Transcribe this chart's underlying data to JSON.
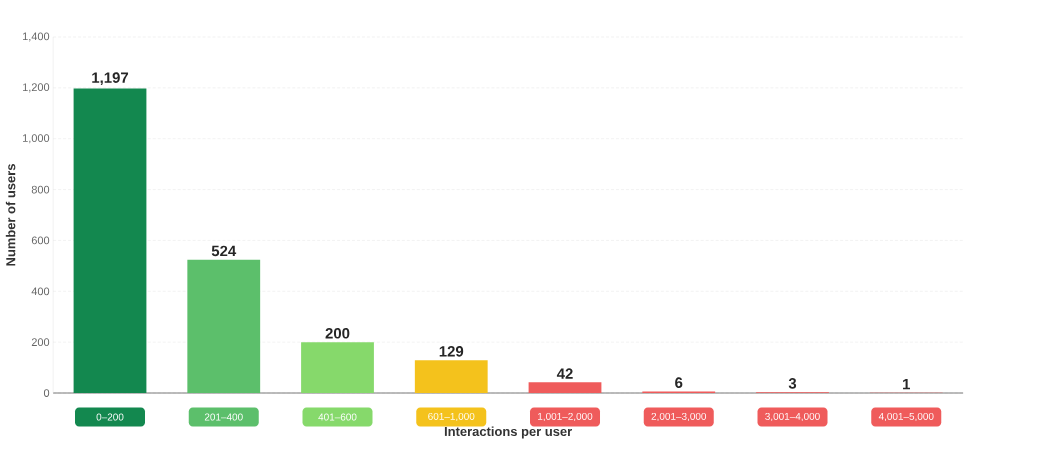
{
  "chart_data": {
    "type": "bar",
    "xlabel": "Interactions per user",
    "ylabel": "Number of users",
    "categories": [
      "0–200",
      "201–400",
      "401–600",
      "601–1,000",
      "1,001–2,000",
      "2,001–3,000",
      "3,001–4,000",
      "4,001–5,000"
    ],
    "values": [
      1197,
      524,
      200,
      129,
      42,
      6,
      3,
      1
    ],
    "value_labels": [
      "1,197",
      "524",
      "200",
      "129",
      "42",
      "6",
      "3",
      "1"
    ],
    "colors": [
      "#13884f",
      "#5cbf6b",
      "#86d96b",
      "#f4c21c",
      "#ef5b5b",
      "#ef5b5b",
      "#ef5b5b",
      "#ef5b5b"
    ],
    "ylim": [
      0,
      1400
    ],
    "yticks": [
      0,
      200,
      400,
      600,
      800,
      {
        "value": 1000,
        "label": "1,000"
      },
      {
        "value": 1200,
        "label": "1,200"
      },
      {
        "value": 1400,
        "label": "1,400"
      }
    ],
    "grid": "y"
  }
}
